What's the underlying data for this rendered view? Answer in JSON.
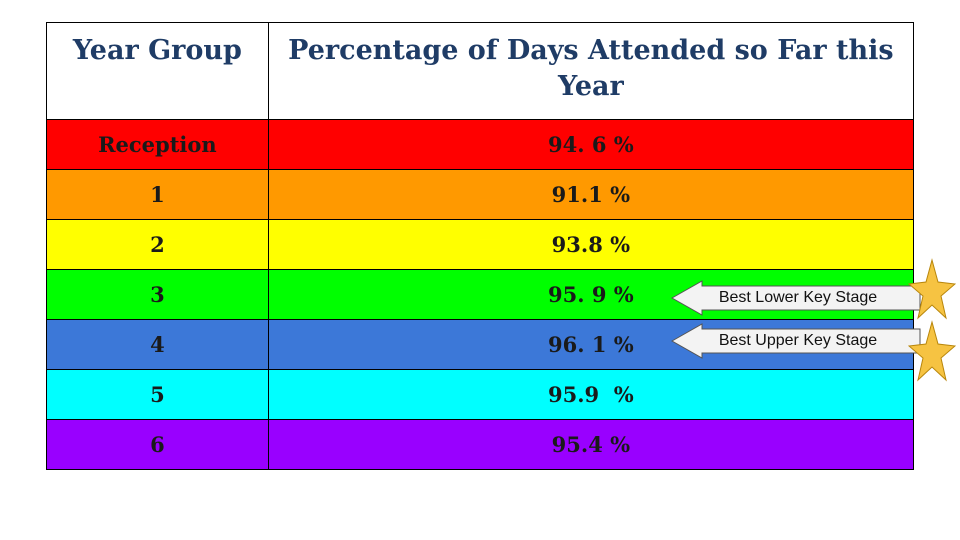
{
  "table": {
    "headers": [
      "Year Group",
      "Percentage of Days Attended so Far this Year"
    ],
    "rows": [
      {
        "group": "Reception",
        "percent": "94. 6 %",
        "color": "#ff0000"
      },
      {
        "group": "1",
        "percent": "91.1 %",
        "color": "#ff9900"
      },
      {
        "group": "2",
        "percent": "93.8 %",
        "color": "#ffff00"
      },
      {
        "group": "3",
        "percent": "95. 9 %",
        "color": "#00ff00"
      },
      {
        "group": "4",
        "percent": "96. 1 %",
        "color": "#3c78d8"
      },
      {
        "group": "5",
        "percent": "95.9  %",
        "color": "#00ffff"
      },
      {
        "group": "6",
        "percent": "95.4 %",
        "color": "#9900ff"
      }
    ]
  },
  "callouts": [
    {
      "label": "Best Lower Key Stage",
      "icon": "left-arrow-callout"
    },
    {
      "label": "Best Upper Key Stage",
      "icon": "left-arrow-callout"
    }
  ],
  "stars": [
    {
      "icon": "star-icon",
      "color": "#f6c342"
    },
    {
      "icon": "star-icon",
      "color": "#f6c342"
    }
  ]
}
